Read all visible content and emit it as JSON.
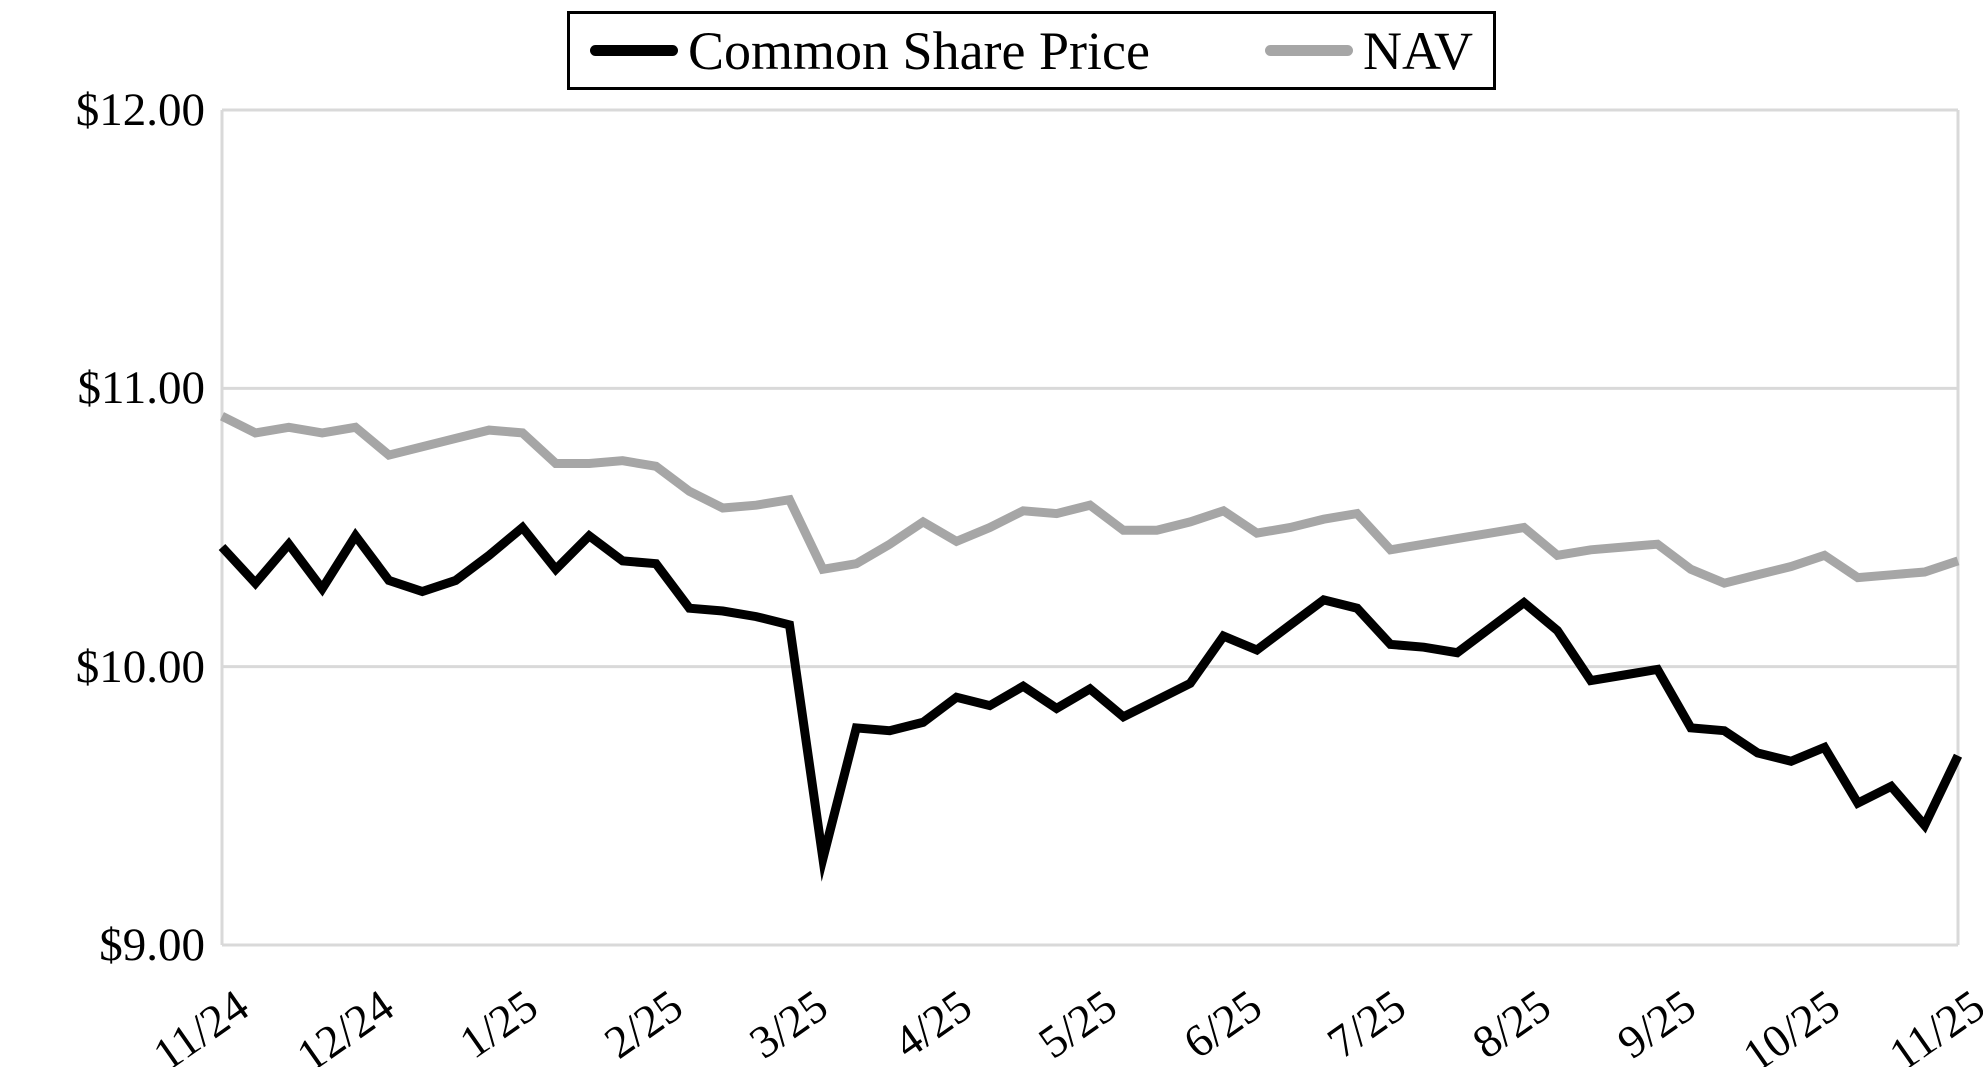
{
  "legend": {
    "items": [
      {
        "label": "Common Share Price",
        "color": "#000000"
      },
      {
        "label": "NAV",
        "color": "#a6a6a6"
      }
    ]
  },
  "colors": {
    "gridline": "#d9d9d9",
    "background": "#ffffff"
  },
  "chart_data": {
    "type": "line",
    "title": "",
    "xlabel": "",
    "ylabel": "",
    "ylim": [
      9,
      12
    ],
    "grid": "horizontal",
    "legend_position": "top-center",
    "y_ticks": [
      {
        "label": "$12.00",
        "value": 12
      },
      {
        "label": "$11.00",
        "value": 11
      },
      {
        "label": "$10.00",
        "value": 10
      },
      {
        "label": "$9.00",
        "value": 9
      }
    ],
    "x_ticks": [
      "11/24",
      "12/24",
      "1/25",
      "2/25",
      "3/25",
      "4/25",
      "5/25",
      "6/25",
      "7/25",
      "8/25",
      "9/25",
      "10/25",
      "11/25"
    ],
    "x_unit": "weekly points from 11/24 through 11/25",
    "series": [
      {
        "name": "Common Share Price",
        "color": "#000000",
        "values": [
          10.43,
          10.3,
          10.44,
          10.28,
          10.47,
          10.31,
          10.27,
          10.31,
          10.4,
          10.5,
          10.35,
          10.47,
          10.38,
          10.37,
          10.21,
          10.2,
          10.18,
          10.15,
          9.31,
          9.78,
          9.77,
          9.8,
          9.89,
          9.86,
          9.93,
          9.85,
          9.92,
          9.82,
          9.88,
          9.94,
          10.11,
          10.06,
          10.15,
          10.24,
          10.21,
          10.08,
          10.07,
          10.05,
          10.14,
          10.23,
          10.13,
          9.95,
          9.97,
          9.99,
          9.78,
          9.77,
          9.69,
          9.66,
          9.71,
          9.51,
          9.57,
          9.43,
          9.68
        ]
      },
      {
        "name": "NAV",
        "color": "#a6a6a6",
        "values": [
          10.9,
          10.84,
          10.86,
          10.84,
          10.86,
          10.76,
          10.79,
          10.82,
          10.85,
          10.84,
          10.73,
          10.73,
          10.74,
          10.72,
          10.63,
          10.57,
          10.58,
          10.6,
          10.35,
          10.37,
          10.44,
          10.52,
          10.45,
          10.5,
          10.56,
          10.55,
          10.58,
          10.49,
          10.49,
          10.52,
          10.56,
          10.48,
          10.5,
          10.53,
          10.55,
          10.42,
          10.44,
          10.46,
          10.48,
          10.5,
          10.4,
          10.42,
          10.43,
          10.44,
          10.35,
          10.3,
          10.33,
          10.36,
          10.4,
          10.32,
          10.33,
          10.34,
          10.38
        ]
      }
    ]
  }
}
